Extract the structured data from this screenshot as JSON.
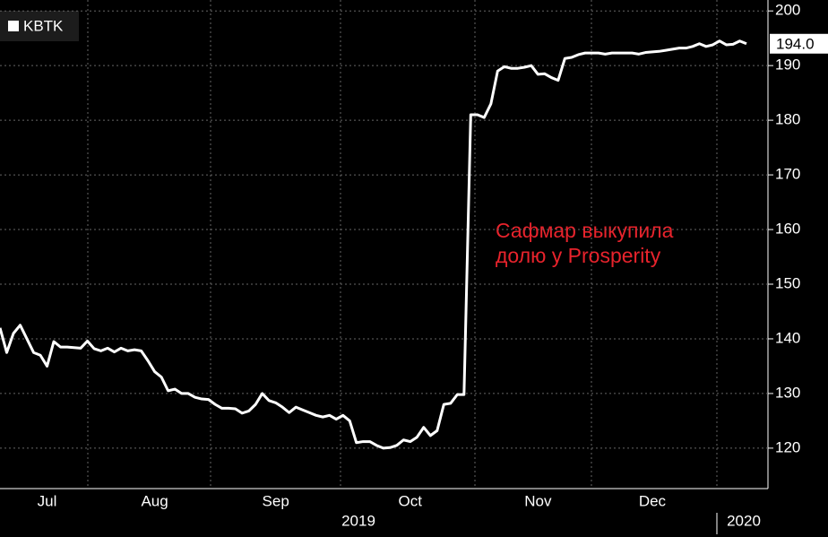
{
  "chart_data": {
    "type": "line",
    "series": [
      {
        "name": "KBTK",
        "color": "#ffffff",
        "values": [
          142,
          137.5,
          141,
          142.5,
          140,
          137.5,
          137,
          135,
          139.5,
          138.5,
          138.5,
          138.4,
          138.3,
          139.6,
          138.2,
          137.8,
          138.3,
          137.6,
          138.3,
          137.8,
          138,
          137.8,
          136,
          134,
          133,
          130.5,
          130.8,
          130,
          130,
          129.3,
          129,
          128.9,
          128,
          127.3,
          127.3,
          127.2,
          126.4,
          126.8,
          128,
          130,
          128.7,
          128.3,
          127.5,
          126.5,
          127.5,
          127,
          126.5,
          126,
          125.7,
          126,
          125.3,
          126,
          125,
          121,
          121.2,
          121.2,
          120.5,
          120,
          120.1,
          120.5,
          121.5,
          121.2,
          122,
          123.8,
          122.3,
          123.2,
          128,
          128.2,
          129.8,
          129.8,
          181,
          181,
          180.5,
          183,
          189,
          189.8,
          189.5,
          189.5,
          189.7,
          190,
          188.4,
          188.5,
          187.8,
          187.3,
          191.3,
          191.5,
          192,
          192.3,
          192.3,
          192.3,
          192.1,
          192.3,
          192.3,
          192.3,
          192.3,
          192.1,
          192.4,
          192.5,
          192.6,
          192.8,
          193,
          193.2,
          193.2,
          193.5,
          194,
          193.5,
          193.8,
          194.5,
          193.8,
          193.9,
          194.5,
          194
        ]
      }
    ],
    "categories": [
      null,
      null,
      null,
      null,
      null,
      null,
      null,
      "Jul",
      null,
      null,
      null,
      null,
      null,
      null,
      null,
      null,
      null,
      null,
      null,
      null,
      null,
      null,
      null,
      "Aug",
      null,
      null,
      null,
      null,
      null,
      null,
      null,
      null,
      null,
      null,
      null,
      null,
      null,
      null,
      null,
      null,
      null,
      "Sep",
      null,
      null,
      null,
      null,
      null,
      null,
      null,
      null,
      null,
      null,
      null,
      null,
      null,
      null,
      null,
      null,
      null,
      null,
      null,
      "Oct",
      null,
      null,
      null,
      null,
      null,
      null,
      null,
      null,
      null,
      null,
      null,
      null,
      null,
      null,
      null,
      null,
      null,
      null,
      "Nov",
      null,
      null,
      null,
      null,
      null,
      null,
      null,
      null,
      null,
      null,
      null,
      null,
      null,
      null,
      null,
      null,
      "Dec",
      null,
      null,
      null,
      null,
      null,
      null,
      null,
      null,
      null,
      null,
      null,
      null,
      null,
      null
    ],
    "years": [
      "2019",
      "2020"
    ],
    "end_label": "194.0",
    "annotation": [
      "Сафмар выкупила",
      "долю у Prosperity"
    ],
    "ylim": [
      112.6,
      202
    ],
    "yticks": [
      120,
      130,
      140,
      150,
      160,
      170,
      180,
      190,
      200
    ],
    "grid": true
  }
}
